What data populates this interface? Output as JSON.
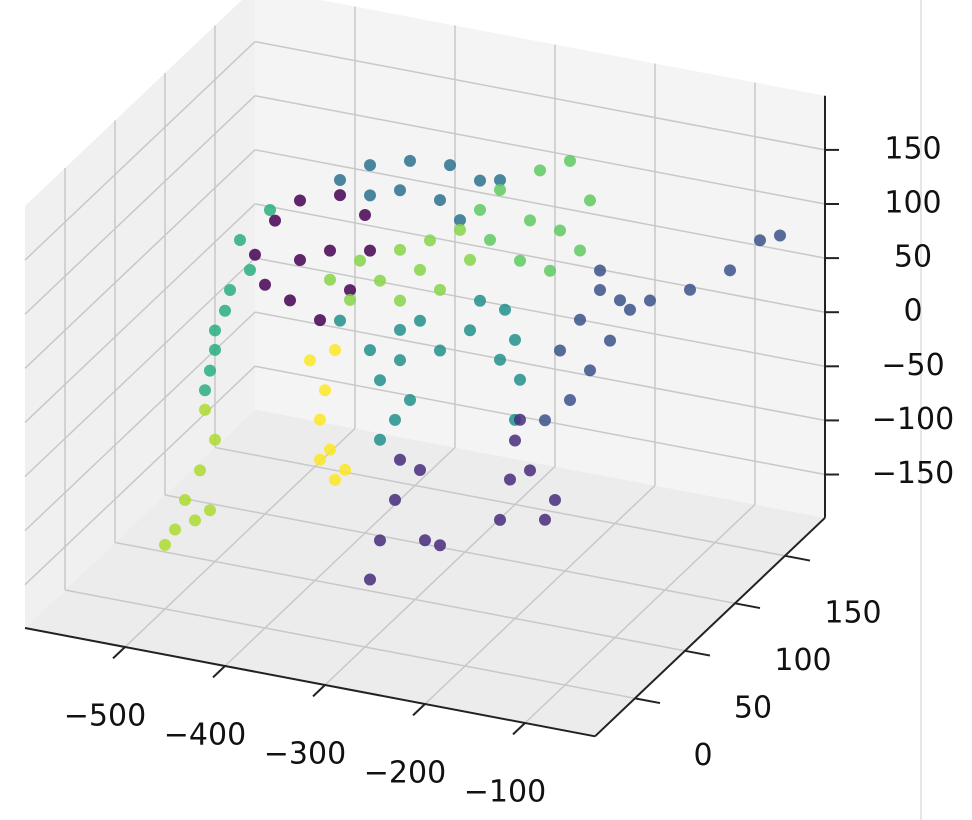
{
  "chart_data": {
    "type": "scatter3d",
    "xlim": [
      -600,
      -30
    ],
    "ylim": [
      -40,
      190
    ],
    "zlim": [
      -190,
      200
    ],
    "xticks": [
      {
        "value": -500,
        "label": "−500"
      },
      {
        "value": -400,
        "label": "−400"
      },
      {
        "value": -300,
        "label": "−300"
      },
      {
        "value": -200,
        "label": "−200"
      },
      {
        "value": -100,
        "label": "−100"
      }
    ],
    "yticks": [
      0,
      50,
      100,
      150
    ],
    "zticks": [
      {
        "value": -150,
        "label": "−150"
      },
      {
        "value": -100,
        "label": "−100"
      },
      {
        "value": -50,
        "label": "−50"
      },
      0,
      50,
      100,
      150
    ],
    "grid": true,
    "series": [
      {
        "color": "#29af7f",
        "x": [
          -485,
          -455,
          -495,
          -510,
          -515,
          -520,
          -500,
          -475,
          -510
        ],
        "y": [
          60,
          60,
          60,
          60,
          60,
          60,
          60,
          60,
          60
        ],
        "z": [
          101,
          134,
          53,
          13,
          -25,
          -44,
          33,
          75,
          -5
        ]
      },
      {
        "color": "#440154",
        "x": [
          -470,
          -450,
          -425,
          -385,
          -360,
          -355,
          -375,
          -405,
          -435,
          -460,
          -395,
          -425
        ],
        "y": [
          60,
          60,
          60,
          60,
          60,
          60,
          60,
          60,
          60,
          60,
          60,
          60
        ],
        "z": [
          90,
          125,
          148,
          160,
          146,
          114,
          74,
          41,
          54,
          64,
          107,
          93
        ]
      },
      {
        "color": "#2c718e",
        "x": [
          -385,
          -355,
          -315,
          -275,
          -245,
          -325,
          -285,
          -355,
          -225,
          -265
        ],
        "y": [
          60,
          60,
          60,
          60,
          60,
          60,
          60,
          60,
          60,
          60
        ],
        "z": [
          174,
          193,
          204,
          207,
          198,
          175,
          173,
          165,
          202,
          158
        ]
      },
      {
        "color": "#21918c",
        "x": [
          -385,
          -355,
          -325,
          -285,
          -255,
          -245,
          -325,
          -305,
          -345,
          -330,
          -315,
          -345,
          -210,
          -205,
          -220,
          -210,
          -225
        ],
        "y": [
          60,
          60,
          60,
          60,
          60,
          60,
          60,
          60,
          60,
          60,
          60,
          60,
          60,
          60,
          60,
          60,
          60
        ],
        "z": [
          44,
          22,
          18,
          34,
          58,
          87,
          46,
          58,
          -4,
          -38,
          -17,
          -59,
          57,
          21,
          83,
          -17,
          36
        ]
      },
      {
        "color": "#86d549",
        "x": [
          -395,
          -365,
          -325,
          -295,
          -265,
          -255,
          -285,
          -325,
          -375,
          -345,
          -305
        ],
        "y": [
          60,
          60,
          60,
          60,
          60,
          60,
          60,
          60,
          60,
          60,
          60
        ],
        "z": [
          80,
          103,
          120,
          134,
          149,
          123,
          90,
          73,
          65,
          88,
          105
        ]
      },
      {
        "color": "#5ec962",
        "x": [
          -245,
          -225,
          -185,
          -155,
          -135,
          -145,
          -175,
          -205,
          -235,
          -195,
          -165
        ],
        "y": [
          60,
          60,
          60,
          60,
          60,
          60,
          60,
          60,
          60,
          60,
          60
        ],
        "z": [
          171,
          193,
          218,
          232,
          199,
          151,
          127,
          131,
          145,
          170,
          166
        ]
      },
      {
        "color": "#3b528b",
        "x": [
          -165,
          -145,
          -125,
          -105,
          -75,
          -35,
          5,
          35,
          55,
          -180,
          -155,
          -135,
          -115,
          -95,
          -125
        ],
        "y": [
          60,
          60,
          60,
          60,
          60,
          60,
          60,
          60,
          60,
          60,
          60,
          60,
          60,
          60,
          60
        ],
        "z": [
          55,
          87,
          118,
          112,
          117,
          134,
          159,
          192,
          200,
          -12,
          11,
          42,
          73,
          105,
          136
        ]
      },
      {
        "color": "#472d7b",
        "x": [
          -355,
          -345,
          -330,
          -325,
          -305,
          -300,
          -285,
          -225,
          -215,
          -210,
          -195,
          -180,
          -170,
          -205
        ],
        "y": [
          60,
          60,
          60,
          60,
          60,
          60,
          60,
          60,
          60,
          60,
          60,
          60,
          60,
          60
        ],
        "z": [
          -190,
          -152,
          -112,
          -74,
          -80,
          -144,
          -146,
          -112,
          -73,
          -36,
          -61,
          -104,
          -84,
          -16
        ]
      },
      {
        "color": "#addc30",
        "x": [
          -520,
          -510,
          -525,
          -540,
          -550,
          -530,
          -560,
          -515
        ],
        "y": [
          60,
          60,
          60,
          60,
          60,
          60,
          60,
          60
        ],
        "z": [
          -62,
          -88,
          -119,
          -149,
          -178,
          -166,
          -194,
          -154
        ]
      },
      {
        "color": "#fde725",
        "x": [
          -415,
          -400,
          -390,
          -405,
          -395,
          -390,
          -380,
          -405
        ],
        "y": [
          60,
          60,
          60,
          60,
          60,
          60,
          60,
          60
        ],
        "z": [
          2,
          -23,
          16,
          -51,
          -77,
          -104,
          -93,
          -88
        ]
      }
    ]
  }
}
